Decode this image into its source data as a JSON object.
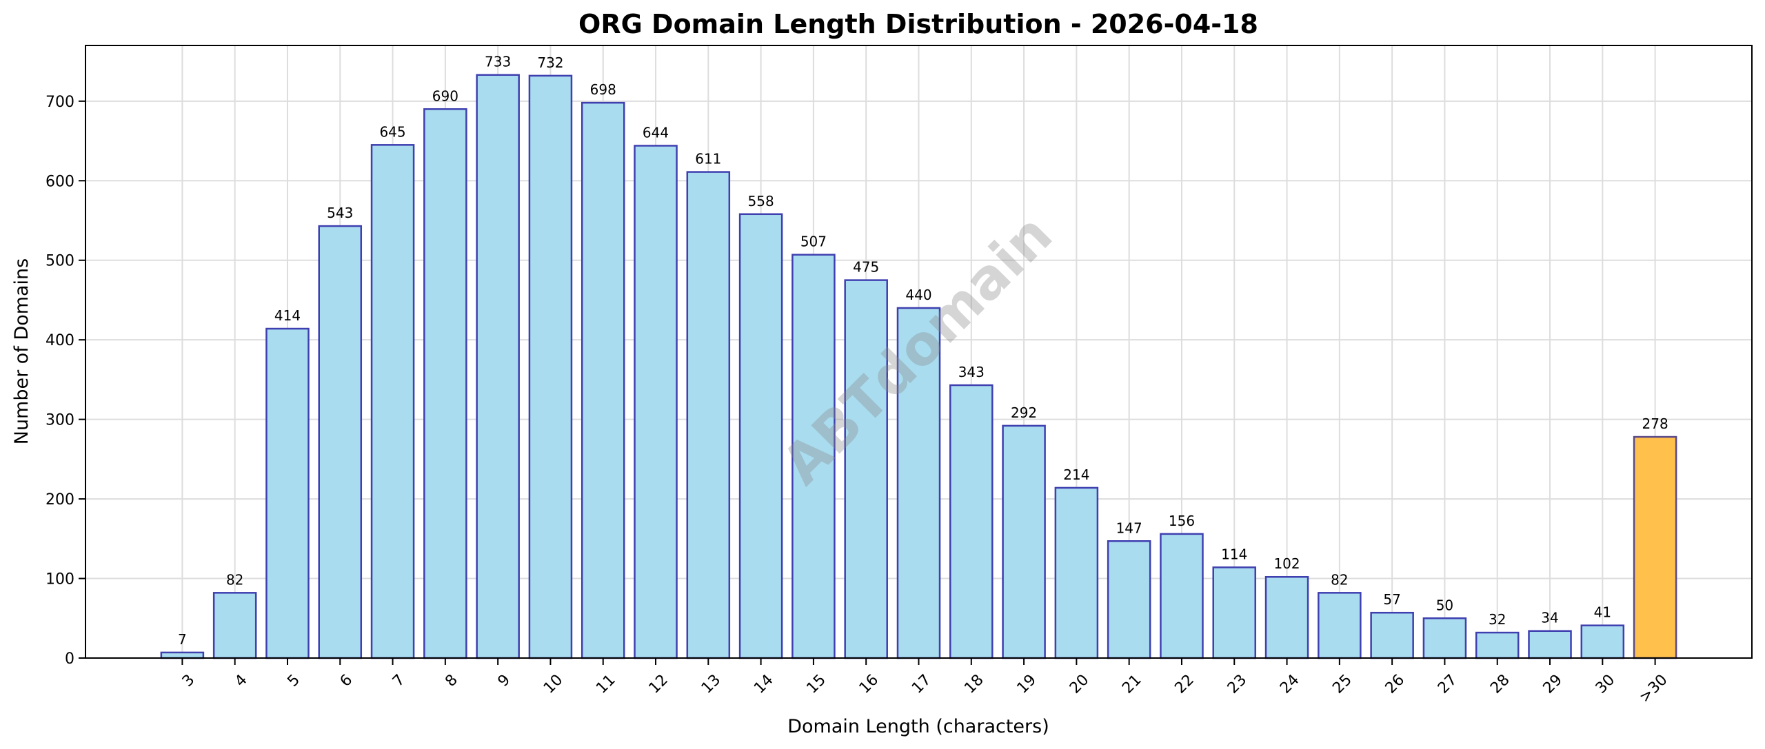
{
  "chart_data": {
    "type": "bar",
    "title": "ORG Domain Length Distribution - 2026-04-18",
    "xlabel": "Domain Length (characters)",
    "ylabel": "Number of Domains",
    "categories": [
      "3",
      "4",
      "5",
      "6",
      "7",
      "8",
      "9",
      "10",
      "11",
      "12",
      "13",
      "14",
      "15",
      "16",
      "17",
      "18",
      "19",
      "20",
      "21",
      "22",
      "23",
      "24",
      "25",
      "26",
      "27",
      "28",
      "29",
      "30",
      ">30"
    ],
    "values": [
      7,
      82,
      414,
      543,
      645,
      690,
      733,
      732,
      698,
      644,
      611,
      558,
      507,
      475,
      440,
      343,
      292,
      214,
      147,
      156,
      114,
      102,
      82,
      57,
      50,
      32,
      34,
      41,
      278
    ],
    "ylim": [
      0,
      770
    ],
    "yticks": [
      0,
      100,
      200,
      300,
      400,
      500,
      600,
      700
    ],
    "grid": true,
    "colors": {
      "bar": "#a9dcef",
      "bar_edge": "#3f3fb0",
      "highlight_bar": "#ffc04c",
      "highlight_edge": "#5a4a8a"
    },
    "highlight_category": ">30",
    "watermark": "ABTdomain"
  }
}
